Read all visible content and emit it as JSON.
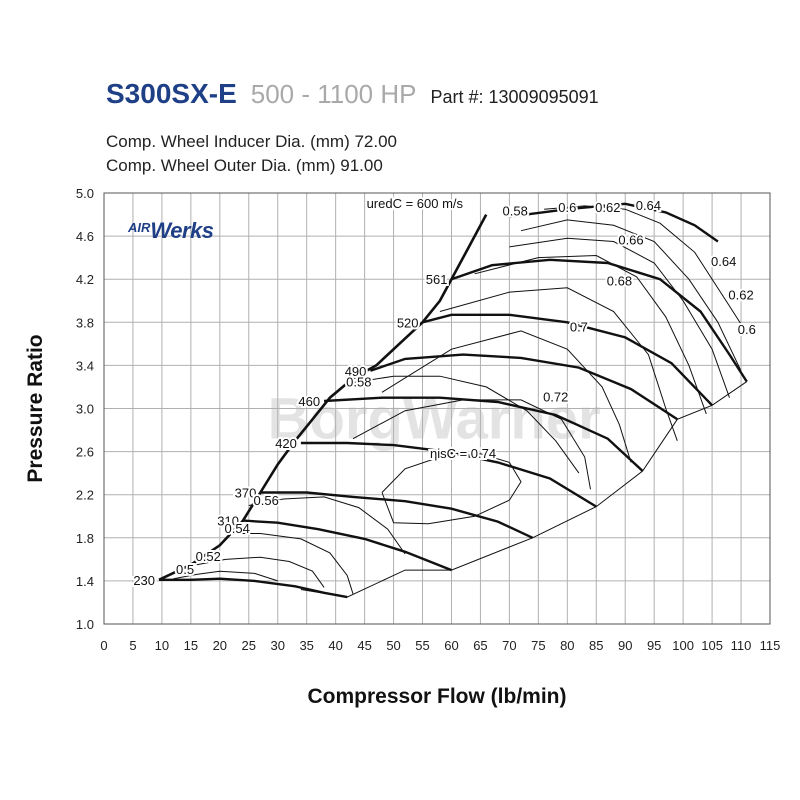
{
  "header": {
    "model": "S300SX-E",
    "hp_range": "500 - 1100 HP",
    "part_number": "Part #: 13009095091",
    "inducer": "Comp. Wheel Inducer Dia. (mm) 72.00",
    "outer": "Comp. Wheel Outer Dia. (mm) 91.00"
  },
  "logo": {
    "air": "AIR",
    "werks": "Werks"
  },
  "watermark": "BorgWarner",
  "colors": {
    "title": "#1f3f86",
    "hp": "#a9a9a9",
    "grid": "#b0b0b0",
    "line": "#111111"
  },
  "chart_data": {
    "type": "line",
    "xlabel": "Compressor Flow (lb/min)",
    "ylabel": "Pressure Ratio",
    "xlim": [
      0,
      115
    ],
    "ylim": [
      1.0,
      5.0
    ],
    "x_ticks": [
      0,
      5,
      10,
      15,
      20,
      25,
      30,
      35,
      40,
      45,
      50,
      55,
      60,
      65,
      70,
      75,
      80,
      85,
      90,
      95,
      100,
      105,
      110,
      115
    ],
    "y_ticks": [
      1.0,
      1.4,
      1.8,
      2.2,
      2.6,
      3.0,
      3.4,
      3.8,
      4.2,
      4.6,
      5.0
    ],
    "grid": true,
    "speed_annotation": "uredC = 600 m/s",
    "surge_line": [
      [
        9.5,
        1.41
      ],
      [
        15,
        1.55
      ],
      [
        20,
        1.73
      ],
      [
        24,
        1.96
      ],
      [
        27,
        2.22
      ],
      [
        30,
        2.48
      ],
      [
        33,
        2.7
      ],
      [
        36,
        2.9
      ],
      [
        39,
        3.1
      ],
      [
        43,
        3.28
      ],
      [
        47,
        3.4
      ],
      [
        51,
        3.6
      ],
      [
        55,
        3.8
      ],
      [
        58,
        4.0
      ],
      [
        61,
        4.3
      ],
      [
        63,
        4.5
      ],
      [
        66,
        4.8
      ]
    ],
    "speed_lines": [
      {
        "label": "230",
        "points": [
          [
            9.5,
            1.41
          ],
          [
            15,
            1.41
          ],
          [
            20,
            1.42
          ],
          [
            26,
            1.4
          ],
          [
            33,
            1.35
          ],
          [
            38,
            1.29
          ],
          [
            42,
            1.25
          ]
        ]
      },
      {
        "label": "310",
        "points": [
          [
            24,
            1.96
          ],
          [
            30,
            1.94
          ],
          [
            37,
            1.88
          ],
          [
            45,
            1.79
          ],
          [
            52,
            1.67
          ],
          [
            60,
            1.5
          ]
        ]
      },
      {
        "label": "370",
        "points": [
          [
            27,
            2.22
          ],
          [
            35,
            2.22
          ],
          [
            43,
            2.18
          ],
          [
            52,
            2.14
          ],
          [
            60,
            2.07
          ],
          [
            68,
            1.95
          ],
          [
            74,
            1.8
          ]
        ]
      },
      {
        "label": "420",
        "points": [
          [
            34,
            2.68
          ],
          [
            42,
            2.68
          ],
          [
            50,
            2.66
          ],
          [
            59,
            2.6
          ],
          [
            68,
            2.5
          ],
          [
            77,
            2.35
          ],
          [
            85,
            2.09
          ]
        ]
      },
      {
        "label": "460",
        "points": [
          [
            38,
            3.07
          ],
          [
            48,
            3.1
          ],
          [
            58,
            3.1
          ],
          [
            68,
            3.06
          ],
          [
            78,
            2.94
          ],
          [
            87,
            2.72
          ],
          [
            93,
            2.42
          ]
        ]
      },
      {
        "label": "490",
        "points": [
          [
            46,
            3.35
          ],
          [
            52,
            3.46
          ],
          [
            62,
            3.5
          ],
          [
            72,
            3.47
          ],
          [
            82,
            3.38
          ],
          [
            91,
            3.18
          ],
          [
            99,
            2.9
          ]
        ]
      },
      {
        "label": "520",
        "points": [
          [
            55,
            3.8
          ],
          [
            60,
            3.87
          ],
          [
            70,
            3.87
          ],
          [
            80,
            3.8
          ],
          [
            90,
            3.66
          ],
          [
            98,
            3.42
          ],
          [
            105,
            3.03
          ]
        ]
      },
      {
        "label": "561",
        "points": [
          [
            60,
            4.2
          ],
          [
            67,
            4.33
          ],
          [
            77,
            4.38
          ],
          [
            87,
            4.35
          ],
          [
            96,
            4.2
          ],
          [
            103,
            3.9
          ],
          [
            108,
            3.5
          ],
          [
            111,
            3.25
          ]
        ]
      },
      {
        "label": "",
        "points": [
          [
            70,
            4.78
          ],
          [
            80,
            4.85
          ],
          [
            90,
            4.9
          ],
          [
            97,
            4.82
          ],
          [
            102,
            4.7
          ],
          [
            106,
            4.55
          ]
        ]
      }
    ],
    "efficiency_islands": [
      {
        "label": "0.5",
        "points": [
          [
            12,
            1.42
          ],
          [
            16,
            1.46
          ],
          [
            20,
            1.49
          ],
          [
            26,
            1.47
          ],
          [
            30,
            1.4
          ]
        ]
      },
      {
        "label": "0.52",
        "points": [
          [
            16,
            1.55
          ],
          [
            21,
            1.6
          ],
          [
            27,
            1.62
          ],
          [
            32,
            1.58
          ],
          [
            36,
            1.49
          ],
          [
            38,
            1.34
          ]
        ]
      },
      {
        "label": "0.54",
        "points": [
          [
            21,
            1.84
          ],
          [
            27,
            1.84
          ],
          [
            34,
            1.79
          ],
          [
            39,
            1.66
          ],
          [
            42,
            1.45
          ],
          [
            43,
            1.28
          ]
        ]
      },
      {
        "label": "0.56",
        "points": [
          [
            25,
            2.1
          ],
          [
            31,
            2.16
          ],
          [
            38,
            2.18
          ],
          [
            44,
            2.08
          ],
          [
            49,
            1.88
          ],
          [
            52,
            1.65
          ]
        ]
      },
      {
        "label": "0.58",
        "points": [
          [
            43,
            3.24
          ],
          [
            50,
            3.3
          ],
          [
            58,
            3.3
          ],
          [
            66,
            3.2
          ],
          [
            73,
            2.98
          ],
          [
            78,
            2.7
          ],
          [
            82,
            2.4
          ]
        ]
      },
      {
        "label": "0.6",
        "points": [
          [
            76,
            4.85
          ],
          [
            83,
            4.88
          ],
          [
            90,
            4.85
          ],
          [
            96,
            4.72
          ],
          [
            102,
            4.45
          ],
          [
            108,
            3.95
          ],
          [
            111,
            3.7
          ]
        ]
      },
      {
        "label": "0.62",
        "points": [
          [
            72,
            4.65
          ],
          [
            80,
            4.75
          ],
          [
            88,
            4.7
          ],
          [
            95,
            4.55
          ],
          [
            101,
            4.2
          ],
          [
            106,
            3.8
          ],
          [
            110,
            3.35
          ]
        ]
      },
      {
        "label": "0.64",
        "points": [
          [
            70,
            4.5
          ],
          [
            80,
            4.58
          ],
          [
            88,
            4.55
          ],
          [
            95,
            4.35
          ],
          [
            100,
            4.0
          ],
          [
            105,
            3.55
          ],
          [
            108,
            3.1
          ]
        ]
      },
      {
        "label": "0.66",
        "points": [
          [
            64,
            4.25
          ],
          [
            75,
            4.4
          ],
          [
            85,
            4.42
          ],
          [
            92,
            4.22
          ],
          [
            97,
            3.85
          ],
          [
            101,
            3.4
          ],
          [
            104,
            2.95
          ]
        ]
      },
      {
        "label": "0.68",
        "points": [
          [
            58,
            3.9
          ],
          [
            70,
            4.08
          ],
          [
            80,
            4.12
          ],
          [
            88,
            3.9
          ],
          [
            94,
            3.5
          ],
          [
            97,
            3.0
          ],
          [
            99,
            2.7
          ]
        ]
      },
      {
        "label": "0.7",
        "points": [
          [
            48,
            3.15
          ],
          [
            60,
            3.55
          ],
          [
            72,
            3.72
          ],
          [
            80,
            3.55
          ],
          [
            86,
            3.2
          ],
          [
            89,
            2.85
          ],
          [
            91,
            2.5
          ]
        ]
      },
      {
        "label": "0.72",
        "points": [
          [
            43,
            2.72
          ],
          [
            52,
            2.98
          ],
          [
            62,
            3.08
          ],
          [
            72,
            3.08
          ],
          [
            79,
            2.9
          ],
          [
            83,
            2.55
          ],
          [
            84,
            2.25
          ]
        ]
      },
      {
        "label": "ηisC = 0.74",
        "points": [
          [
            48,
            2.22
          ],
          [
            52,
            2.44
          ],
          [
            58,
            2.55
          ],
          [
            65,
            2.58
          ],
          [
            70,
            2.5
          ],
          [
            72,
            2.32
          ],
          [
            70,
            2.15
          ],
          [
            64,
            2.0
          ],
          [
            56,
            1.93
          ],
          [
            50,
            1.94
          ],
          [
            48,
            2.22
          ]
        ]
      }
    ],
    "choke_line": [
      [
        34,
        1.32
      ],
      [
        42,
        1.25
      ],
      [
        52,
        1.5
      ],
      [
        60,
        1.5
      ],
      [
        74,
        1.8
      ],
      [
        85,
        2.09
      ],
      [
        93,
        2.42
      ],
      [
        99,
        2.9
      ],
      [
        105,
        3.03
      ],
      [
        111,
        3.25
      ]
    ]
  }
}
